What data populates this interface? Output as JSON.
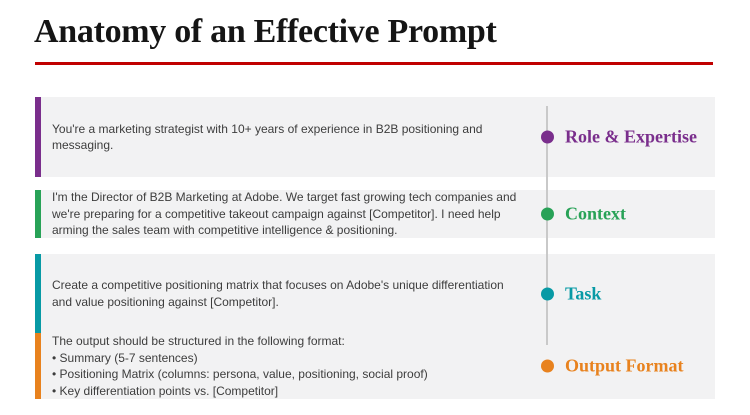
{
  "title": "Anatomy of an Effective Prompt",
  "divider_color": "#c00000",
  "timeline_line_color": "#c9c9c9",
  "body_text_color": "#3d3d3d",
  "row_background_color": "#f2f2f3",
  "rows": [
    {
      "label": "Role & Expertise",
      "color": "#7a2e8c",
      "lines": [
        "You're a marketing strategist with 10+ years of experience in B2B positioning and",
        "messaging."
      ]
    },
    {
      "label": "Context",
      "color": "#28a257",
      "lines": [
        "I'm the Director of B2B Marketing at Adobe. We target fast growing tech companies and",
        "we're preparing for a competitive takeout campaign against [Competitor]. I need help",
        "arming the sales team with competitive intelligence & positioning."
      ]
    },
    {
      "label": "Task",
      "color": "#089aa5",
      "lines": [
        "Create a competitive positioning matrix that focuses on Adobe's unique differentiation",
        "and value positioning against [Competitor]."
      ]
    },
    {
      "label": "Output Format",
      "color": "#e8821e",
      "lines": [
        "The output should be structured in the following format:",
        "• Summary (5-7 sentences)",
        "• Positioning Matrix (columns: persona, value, positioning, social proof)",
        "• Key differentiation points vs. [Competitor]"
      ]
    }
  ]
}
